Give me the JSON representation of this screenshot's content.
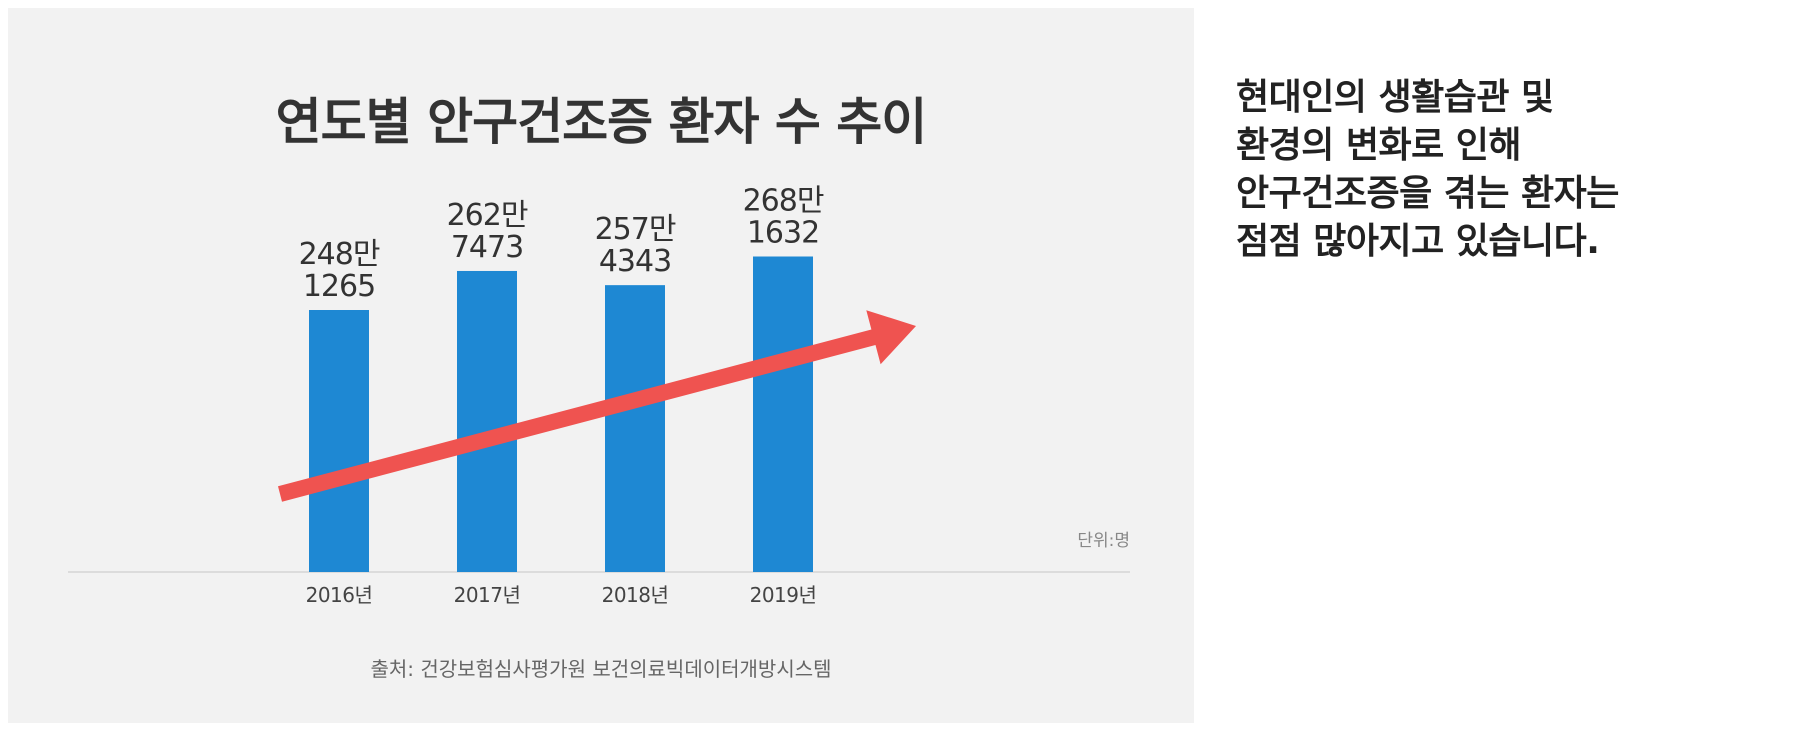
{
  "chart_data": {
    "type": "bar",
    "title": "연도별 안구건조증 환자 수 추이",
    "categories": [
      "2016년",
      "2017년",
      "2018년",
      "2019년"
    ],
    "values": [
      2481265,
      2627473,
      2574343,
      2681632
    ],
    "data_labels": [
      [
        "248만",
        "1265"
      ],
      [
        "262만",
        "7473"
      ],
      [
        "257만",
        "4343"
      ],
      [
        "268만",
        "1632"
      ]
    ],
    "unit_label": "단위:명",
    "source": "출처: 건강보험심사평가원 보건의료빅데이터개방시스템",
    "trend_arrow": "increasing",
    "colors": {
      "bar": "#1e88d3",
      "arrow": "#ef5350",
      "background": "#f2f2f2",
      "text": "#333333"
    }
  },
  "side_text": {
    "lines": [
      "현대인의 생활습관 및",
      "환경의 변화로 인해",
      "안구건조증을 겪는 환자는",
      "점점 많아지고 있습니다."
    ]
  }
}
